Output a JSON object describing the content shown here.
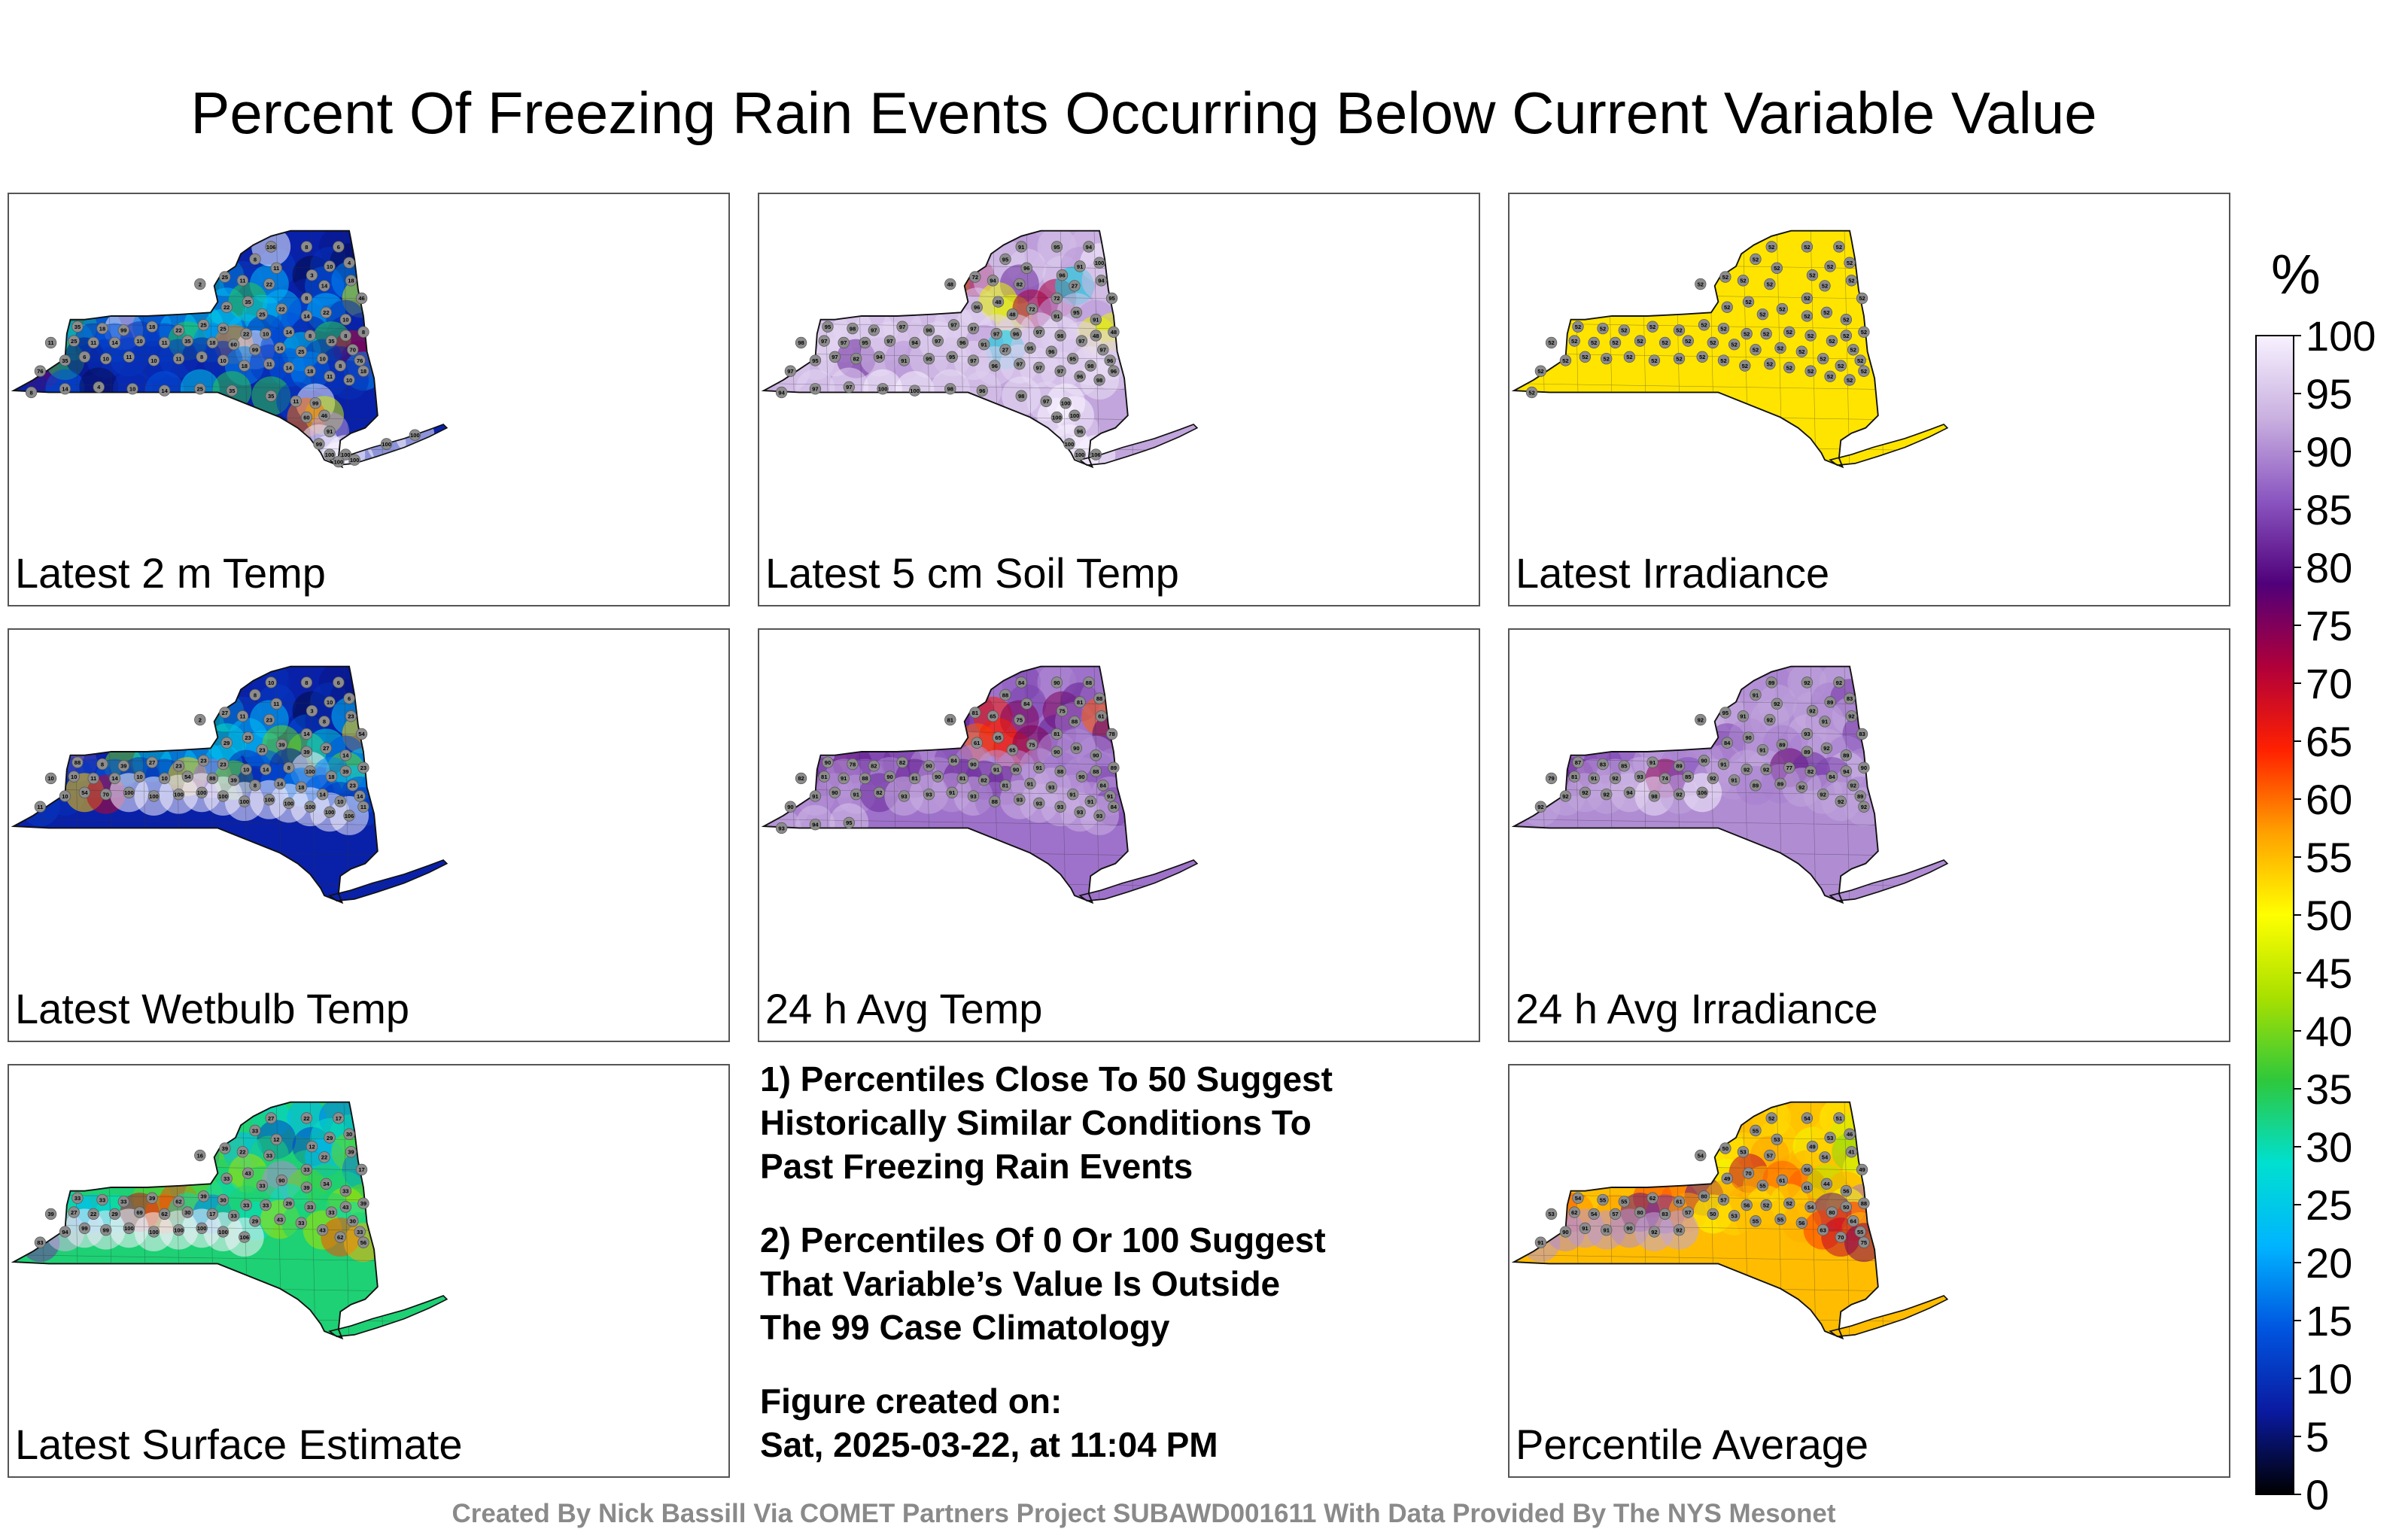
{
  "title": "Percent Of Freezing Rain Events Occurring Below Current Variable Value",
  "panels": [
    {
      "label": "Latest 2 m Temp",
      "style": "mixed-cold",
      "values": [
        10,
        8,
        6,
        8,
        11,
        3,
        10,
        4,
        2,
        25,
        11,
        22,
        8,
        14,
        18,
        46,
        22,
        35,
        25,
        22,
        14,
        22,
        10,
        8,
        8,
        35,
        18,
        99,
        18,
        22,
        25,
        25,
        22,
        10,
        14,
        8,
        35,
        70,
        76,
        11,
        25,
        11,
        14,
        10,
        11,
        35,
        18,
        60,
        99,
        14,
        25,
        10,
        8,
        18,
        76,
        35,
        6,
        10,
        11,
        10,
        11,
        8,
        10,
        18,
        11,
        14,
        18,
        11,
        10,
        8,
        14,
        4,
        10,
        14,
        25,
        35,
        35,
        11,
        99,
        46,
        60,
        91,
        99,
        100,
        100,
        100,
        100,
        100,
        100,
        106
      ]
    },
    {
      "label": "Latest 5 cm Soil Temp",
      "style": "mixed-warm",
      "values": [
        91,
        95,
        94,
        95,
        96,
        96,
        91,
        100,
        48,
        72,
        94,
        82,
        72,
        27,
        94,
        95,
        96,
        48,
        48,
        72,
        91,
        95,
        91,
        48,
        48,
        95,
        98,
        97,
        97,
        96,
        97,
        97,
        97,
        96,
        97,
        98,
        97,
        97,
        96,
        98,
        97,
        97,
        95,
        97,
        94,
        97,
        96,
        91,
        27,
        95,
        96,
        95,
        98,
        96,
        97,
        95,
        97,
        82,
        94,
        91,
        95,
        95,
        97,
        96,
        97,
        97,
        97,
        96,
        98,
        94,
        97,
        97,
        100,
        100,
        98,
        96,
        98,
        97,
        100,
        100,
        100,
        96,
        100,
        100,
        106
      ]
    },
    {
      "label": "Latest Irradiance",
      "style": "flat-52",
      "values": [
        52,
        52,
        52,
        52,
        52,
        52,
        52,
        52,
        52,
        52,
        52,
        52,
        52,
        52,
        52,
        52,
        52,
        52,
        52,
        52,
        52,
        52,
        52,
        52,
        52,
        52,
        52,
        52,
        52,
        52,
        52,
        52,
        52,
        52,
        52,
        52,
        52,
        52,
        52,
        52,
        52,
        52,
        52,
        52,
        52,
        52,
        52,
        52,
        52,
        52,
        52,
        52,
        52,
        52,
        52,
        52,
        52,
        52,
        52,
        52,
        52,
        52,
        52,
        52,
        52,
        52,
        52,
        52,
        52,
        52
      ]
    },
    {
      "label": "Latest Wetbulb Temp",
      "style": "mixed-cold",
      "values": [
        10,
        8,
        6,
        8,
        11,
        3,
        10,
        6,
        2,
        27,
        11,
        23,
        14,
        8,
        23,
        54,
        29,
        23,
        23,
        39,
        39,
        27,
        14,
        23,
        39,
        88,
        8,
        39,
        27,
        23,
        23,
        23,
        10,
        14,
        8,
        100,
        18,
        23,
        14,
        10,
        10,
        11,
        14,
        10,
        10,
        54,
        88,
        39,
        8,
        14,
        18,
        14,
        10,
        11,
        11,
        10,
        54,
        70,
        100,
        100,
        100,
        100,
        100,
        100,
        100,
        100,
        100,
        100,
        106
      ]
    },
    {
      "label": "24 h Avg Temp",
      "style": "mixed-hot",
      "values": [
        84,
        90,
        88,
        88,
        84,
        75,
        81,
        88,
        81,
        81,
        65,
        75,
        81,
        88,
        61,
        78,
        61,
        65,
        65,
        75,
        90,
        90,
        90,
        89,
        88,
        90,
        78,
        82,
        82,
        90,
        84,
        90,
        91,
        90,
        91,
        88,
        90,
        84,
        91,
        82,
        81,
        91,
        88,
        90,
        81,
        90,
        81,
        82,
        81,
        91,
        93,
        91,
        91,
        84,
        90,
        91,
        90,
        91,
        82,
        93,
        93,
        91,
        93,
        88,
        93,
        93,
        93,
        93,
        93,
        93,
        94,
        95
      ]
    },
    {
      "label": "24 h Avg Irradiance",
      "style": "mixed-purple",
      "values": [
        89,
        92,
        92,
        91,
        92,
        92,
        89,
        83,
        92,
        95,
        91,
        92,
        93,
        91,
        92,
        83,
        84,
        90,
        91,
        89,
        89,
        92,
        89,
        90,
        94,
        87,
        83,
        85,
        91,
        89,
        90,
        91,
        92,
        92,
        77,
        82,
        84,
        92,
        89,
        79,
        81,
        91,
        92,
        93,
        74,
        85,
        92,
        91,
        89,
        89,
        92,
        92,
        92,
        92,
        92,
        92,
        92,
        92,
        94,
        98,
        92,
        106
      ]
    },
    {
      "label": "Latest Surface Estimate",
      "style": "mixed-green",
      "values": [
        27,
        22,
        17,
        33,
        12,
        12,
        29,
        30,
        16,
        39,
        22,
        33,
        33,
        22,
        39,
        17,
        33,
        43,
        33,
        90,
        39,
        34,
        33,
        39,
        43,
        33,
        33,
        33,
        39,
        62,
        39,
        30,
        33,
        33,
        29,
        33,
        33,
        30,
        33,
        39,
        27,
        22,
        29,
        69,
        62,
        30,
        17,
        33,
        29,
        43,
        33,
        43,
        62,
        56,
        83,
        94,
        99,
        99,
        100,
        100,
        100,
        100,
        100,
        106
      ]
    },
    {
      "label": "Percentile Average",
      "style": "mixed-avg",
      "values": [
        52,
        54,
        51,
        55,
        53,
        49,
        53,
        46,
        54,
        50,
        53,
        57,
        56,
        54,
        41,
        49,
        49,
        70,
        55,
        61,
        61,
        44,
        56,
        88,
        50,
        54,
        55,
        55,
        62,
        61,
        80,
        57,
        56,
        52,
        52,
        54,
        80,
        64,
        55,
        53,
        62,
        54,
        57,
        80,
        83,
        57,
        50,
        53,
        55,
        55,
        56,
        63,
        70,
        75,
        91,
        90,
        91,
        91,
        90,
        92,
        92
      ]
    }
  ],
  "notes": [
    "1) Percentiles Close To 50 Suggest\nHistorically Similar Conditions To\nPast Freezing Rain Events",
    "2) Percentiles Of 0 Or 100 Suggest\nThat Variable’s Value Is Outside\nThe 99 Case Climatology",
    "Figure created on:\nSat, 2025-03-22, at 11:04 PM"
  ],
  "colorbar": {
    "unit": "%",
    "ticks": [
      "100",
      "95",
      "90",
      "85",
      "80",
      "75",
      "70",
      "65",
      "60",
      "55",
      "50",
      "45",
      "40",
      "35",
      "30",
      "25",
      "20",
      "15",
      "10",
      "5",
      "0"
    ],
    "stops": [
      "#000000",
      "#0a1aa0",
      "#0055e0",
      "#00b4ff",
      "#00e0d0",
      "#2ec83c",
      "#a8e000",
      "#ffff00",
      "#ffa000",
      "#ff2000",
      "#b0003a",
      "#50007a",
      "#8a55c0",
      "#c9b0e0",
      "#f8f2ff"
    ]
  },
  "footer": "Created By Nick Bassill Via COMET Partners Project SUBAWD001611 With Data Provided By The NYS Mesonet"
}
